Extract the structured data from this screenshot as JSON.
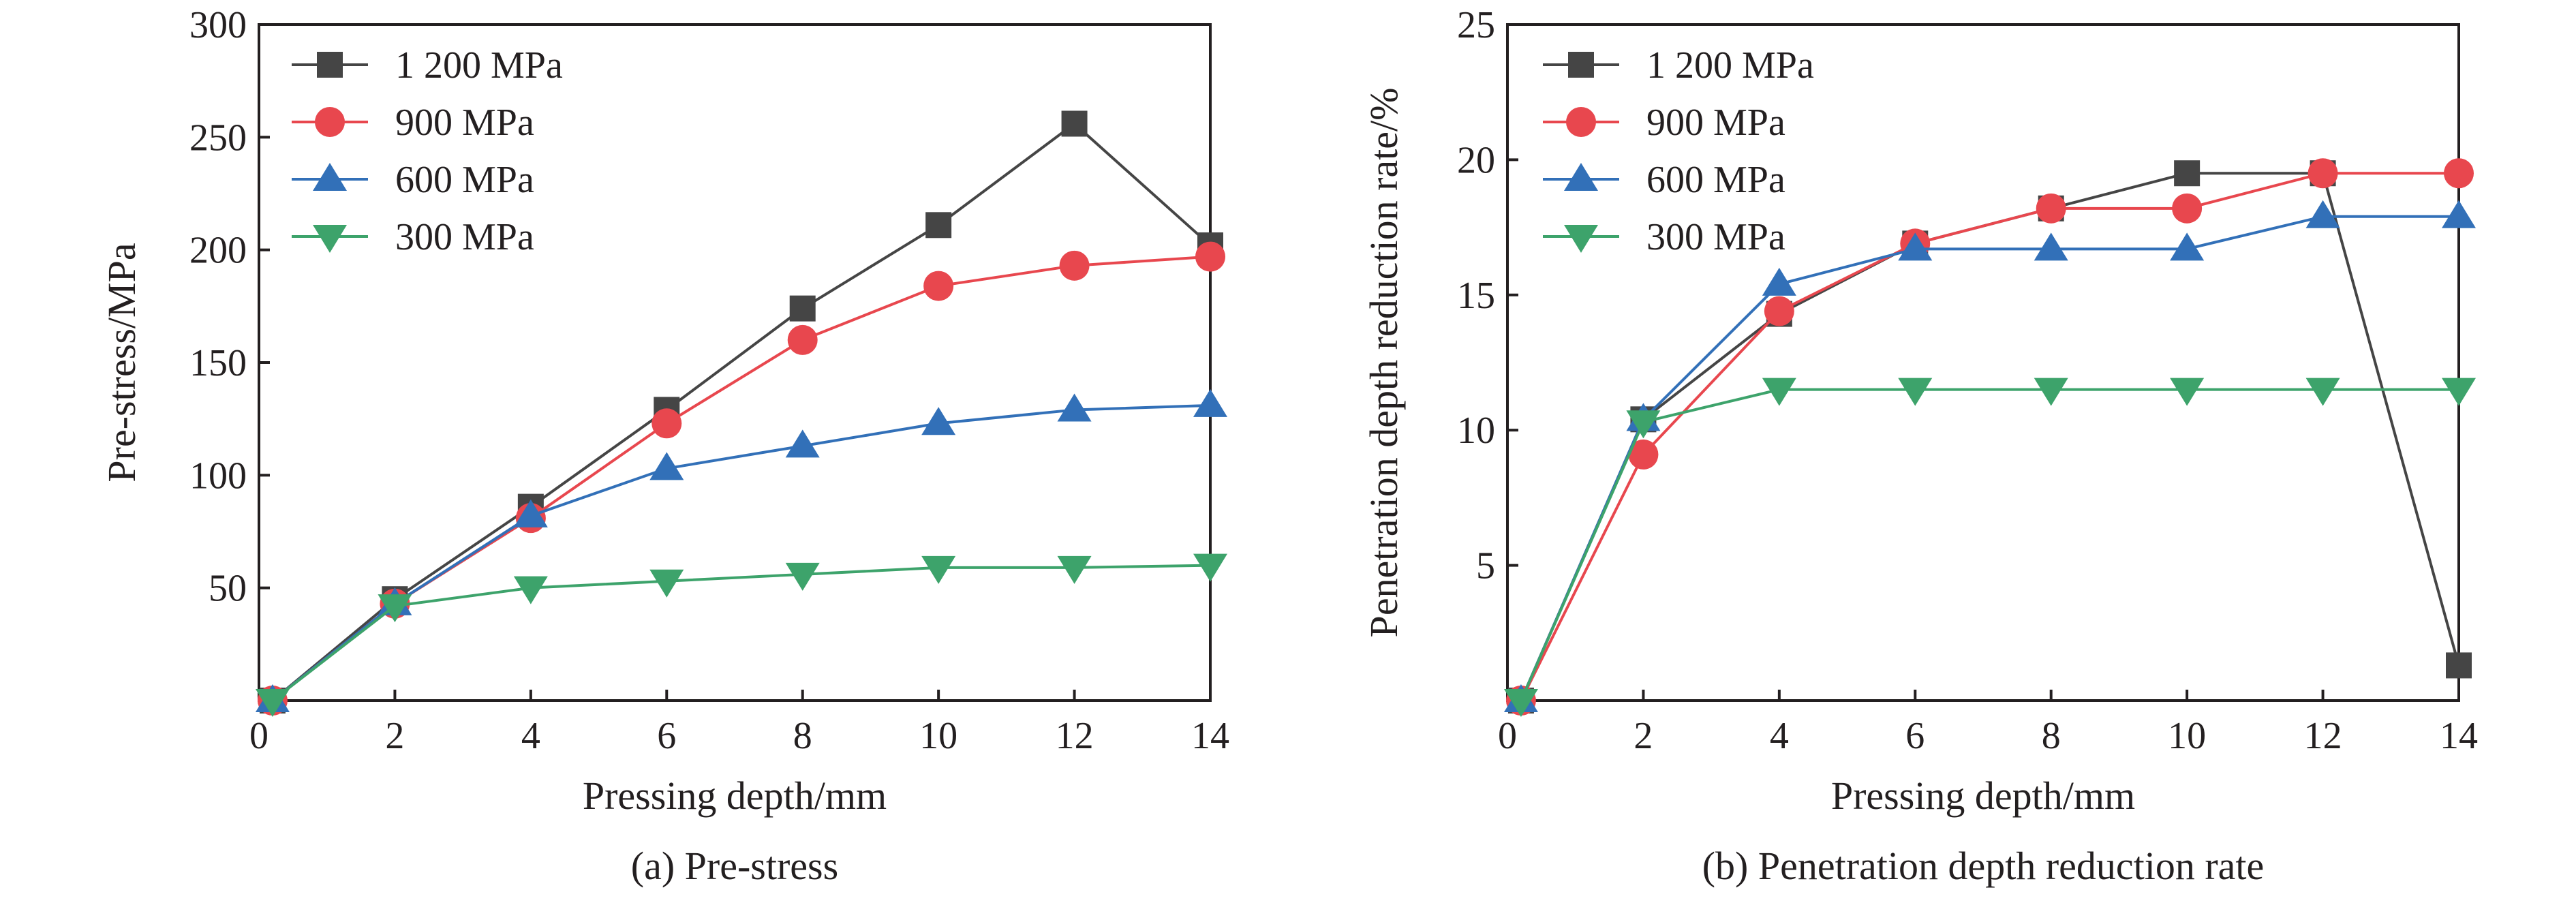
{
  "chart_data": [
    {
      "type": "line",
      "panel": "a",
      "caption": "(a) Pre-stress",
      "xlabel": "Pressing depth/mm",
      "ylabel": "Pre-stress/MPa",
      "xlim": [
        0,
        14
      ],
      "ylim": [
        0,
        300
      ],
      "xticks": [
        0,
        2,
        4,
        6,
        8,
        10,
        12,
        14
      ],
      "yticks": [
        50,
        100,
        150,
        200,
        250,
        300
      ],
      "grid": false,
      "legend_position": "top-left",
      "series": [
        {
          "name": "1 200 MPa",
          "marker": "square",
          "color": "#454545",
          "x": [
            0.2,
            2,
            4,
            6,
            8,
            10,
            12,
            14
          ],
          "y": [
            0,
            45,
            86,
            129,
            174,
            211,
            256,
            202
          ]
        },
        {
          "name": "900 MPa",
          "marker": "circle",
          "color": "#e8474e",
          "x": [
            0.2,
            2,
            4,
            6,
            8,
            10,
            12,
            14
          ],
          "y": [
            0,
            43,
            81,
            123,
            160,
            184,
            193,
            197
          ]
        },
        {
          "name": "600 MPa",
          "marker": "triangle-up",
          "color": "#3270b8",
          "x": [
            0.2,
            2,
            4,
            6,
            8,
            10,
            12,
            14
          ],
          "y": [
            0,
            43,
            82,
            103,
            113,
            123,
            129,
            131
          ]
        },
        {
          "name": "300 MPa",
          "marker": "triangle-down",
          "color": "#3da36b",
          "x": [
            0.2,
            2,
            4,
            6,
            8,
            10,
            12,
            14
          ],
          "y": [
            0,
            42,
            50,
            53,
            56,
            59,
            59,
            60
          ]
        }
      ]
    },
    {
      "type": "line",
      "panel": "b",
      "caption": "(b) Penetration depth reduction rate",
      "xlabel": "Pressing depth/mm",
      "ylabel": "Penetration depth reduction rate/%",
      "xlim": [
        0,
        14
      ],
      "ylim": [
        0,
        25
      ],
      "xticks": [
        0,
        2,
        4,
        6,
        8,
        10,
        12,
        14
      ],
      "yticks": [
        5,
        10,
        15,
        20,
        25
      ],
      "grid": false,
      "legend_position": "top-left",
      "series": [
        {
          "name": "1 200 MPa",
          "marker": "square",
          "color": "#454545",
          "x": [
            0.2,
            2,
            4,
            6,
            8,
            10,
            12,
            14
          ],
          "y": [
            0,
            10.4,
            14.3,
            16.9,
            18.2,
            19.5,
            19.5,
            1.3
          ]
        },
        {
          "name": "900 MPa",
          "marker": "circle",
          "color": "#e8474e",
          "x": [
            0.2,
            2,
            4,
            6,
            8,
            10,
            12,
            14
          ],
          "y": [
            0,
            9.1,
            14.4,
            16.9,
            18.2,
            18.2,
            19.5,
            19.5
          ]
        },
        {
          "name": "600 MPa",
          "marker": "triangle-up",
          "color": "#3270b8",
          "x": [
            0.2,
            2,
            4,
            6,
            8,
            10,
            12,
            14
          ],
          "y": [
            0,
            10.4,
            15.4,
            16.7,
            16.7,
            16.7,
            17.9,
            17.9
          ]
        },
        {
          "name": "300 MPa",
          "marker": "triangle-down",
          "color": "#3da36b",
          "x": [
            0.2,
            2,
            4,
            6,
            8,
            10,
            12,
            14
          ],
          "y": [
            0,
            10.3,
            11.5,
            11.5,
            11.5,
            11.5,
            11.5,
            11.5
          ]
        }
      ]
    }
  ]
}
